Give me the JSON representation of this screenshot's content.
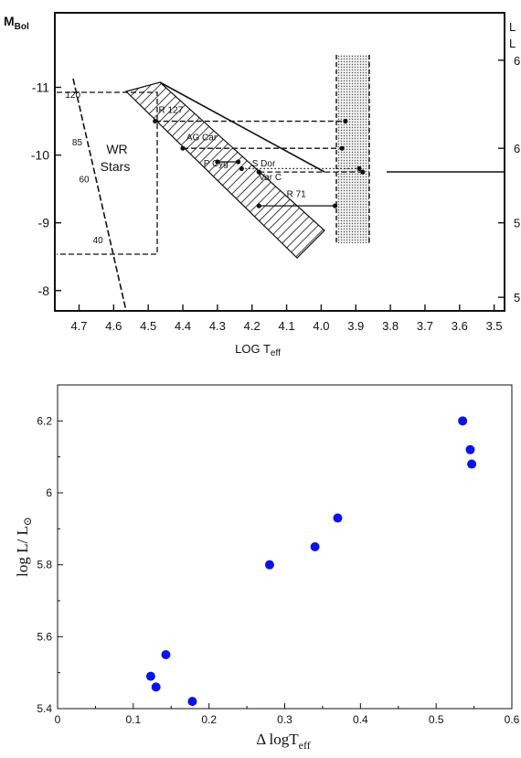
{
  "chart_data": [
    {
      "type": "diagram",
      "ylabel_main": "M",
      "ylabel_sub": "Bol",
      "xlabel_main": "LOG T",
      "xlabel_sub": "eff",
      "right_axis_label_1": "L",
      "right_axis_label_2": "L",
      "x_ticks": [
        "4.7",
        "4.6",
        "4.5",
        "4.4",
        "4.3",
        "4.2",
        "4.1",
        "4.0",
        "3.9",
        "3.8",
        "3.7",
        "3.6",
        "3.5"
      ],
      "x_tick_values": [
        4.7,
        4.6,
        4.5,
        4.4,
        4.3,
        4.2,
        4.1,
        4.0,
        3.9,
        3.8,
        3.7,
        3.6,
        3.5
      ],
      "xlim": [
        4.77,
        3.47
      ],
      "y_ticks": [
        "-11",
        "-10",
        "-9",
        "-8"
      ],
      "y_tick_values": [
        -11,
        -10,
        -9,
        -8
      ],
      "ylim": [
        -7.7,
        -12.1
      ],
      "right_ticks": [
        "6",
        "6",
        "5",
        "5"
      ],
      "right_tick_values": [
        -11.4,
        -10.1,
        -9.0,
        -7.9
      ],
      "region_label_1": "WR",
      "region_label_2": "Stars",
      "mass_labels": [
        {
          "text": "120",
          "x": 4.74,
          "y": -10.9
        },
        {
          "text": "85",
          "x": 4.72,
          "y": -10.2
        },
        {
          "text": "60",
          "x": 4.7,
          "y": -9.65
        },
        {
          "text": "40",
          "x": 4.66,
          "y": -8.75
        }
      ],
      "stars": [
        {
          "name": "R 127",
          "x1": 4.48,
          "x2": 3.93,
          "y": -10.5,
          "style": "dashed",
          "label_x": 4.47,
          "label_y": -10.62
        },
        {
          "name": "AG Car",
          "x1": 4.4,
          "x2": 3.94,
          "y": -10.1,
          "style": "dashed",
          "label_x": 4.39,
          "label_y": -10.22
        },
        {
          "name": "P Cyg",
          "x1": 4.3,
          "x2": 4.24,
          "y": -9.9,
          "style": "solid",
          "label_x": 4.34,
          "label_y": -9.83
        },
        {
          "name": "S Dor",
          "x1": 4.23,
          "x2": 3.89,
          "y": -9.8,
          "style": "dotted",
          "label_x": 4.2,
          "label_y": -9.83
        },
        {
          "name": "Var C",
          "x1": 4.18,
          "x2": 3.88,
          "y": -9.75,
          "style": "dashed",
          "label_x": 4.18,
          "label_y": -9.63
        },
        {
          "name": "R 71",
          "x1": 4.18,
          "x2": 3.96,
          "y": -9.25,
          "style": "solid",
          "label_x": 4.1,
          "label_y": -9.38
        }
      ]
    },
    {
      "type": "scatter",
      "xlabel": "Δ logT",
      "xlabel_sub": "eff",
      "ylabel": "log L/ L",
      "ylabel_sub": "⊙",
      "xlim": [
        0,
        0.6
      ],
      "ylim": [
        5.4,
        6.3
      ],
      "x_ticks": [
        "0",
        "0.1",
        "0.2",
        "0.3",
        "0.4",
        "0.5",
        "0.6"
      ],
      "x_tick_values": [
        0,
        0.1,
        0.2,
        0.3,
        0.4,
        0.5,
        0.6
      ],
      "y_ticks": [
        "5.4",
        "5.6",
        "5.8",
        "6",
        "6.2"
      ],
      "y_tick_values": [
        5.4,
        5.6,
        5.8,
        6.0,
        6.2
      ],
      "marker_color": "#0a14e6",
      "x": [
        0.123,
        0.13,
        0.143,
        0.178,
        0.28,
        0.34,
        0.37,
        0.535,
        0.545,
        0.547
      ],
      "y": [
        5.49,
        5.46,
        5.55,
        5.42,
        5.8,
        5.85,
        5.93,
        6.2,
        6.12,
        6.08
      ]
    }
  ]
}
